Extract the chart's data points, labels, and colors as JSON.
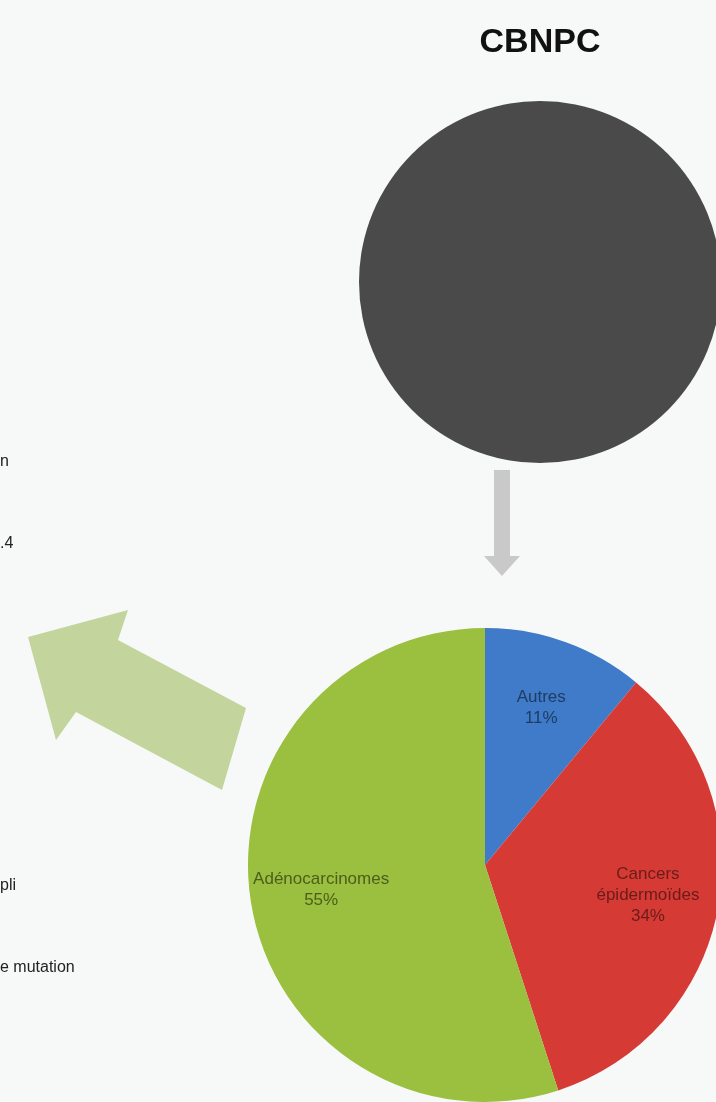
{
  "chart_data": {
    "type": "pie",
    "title": "CBNPC",
    "categories": [
      "Autres",
      "Cancers épidermoïdes",
      "Adénocarcinomes"
    ],
    "values": [
      11,
      34,
      55
    ],
    "colors": [
      "#3f7bc8",
      "#d63a35",
      "#9bbf3e"
    ],
    "value_labels": [
      "11%",
      "34%",
      "55%"
    ],
    "annotations": [
      "n",
      ".4",
      "pli",
      "e mutation"
    ]
  }
}
